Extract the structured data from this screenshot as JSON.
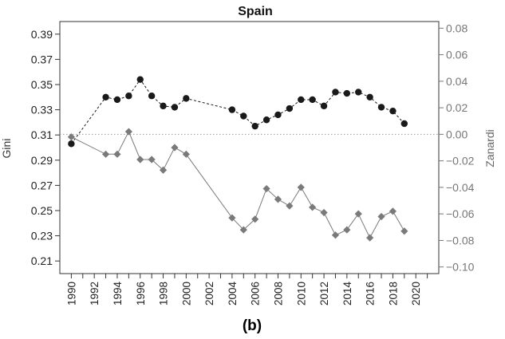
{
  "chart_data": {
    "type": "line",
    "title": "Spain",
    "panel_label": "(b)",
    "left_axis": {
      "label": "Gini",
      "ylim": [
        0.2,
        0.4
      ],
      "ticks": [
        0.21,
        0.23,
        0.25,
        0.27,
        0.29,
        0.31,
        0.33,
        0.35,
        0.37,
        0.39
      ]
    },
    "right_axis": {
      "label": "Zanardi",
      "ylim": [
        -0.105,
        0.085
      ],
      "ticks": [
        -0.1,
        -0.08,
        -0.06,
        -0.04,
        -0.02,
        0.0,
        0.02,
        0.04,
        0.06,
        0.08
      ],
      "tick_labels": [
        "−0.10",
        "−0.08",
        "−0.06",
        "−0.04",
        "−0.02",
        "0.00",
        "0.02",
        "0.04",
        "0.06",
        "0.08"
      ]
    },
    "xlim": [
      1989,
      2022
    ],
    "x_ticks": [
      1990,
      1991,
      1992,
      1993,
      1994,
      1995,
      1996,
      1997,
      1998,
      1999,
      2000,
      2001,
      2002,
      2003,
      2004,
      2005,
      2006,
      2007,
      2008,
      2009,
      2010,
      2011,
      2012,
      2013,
      2014,
      2015,
      2016,
      2017,
      2018,
      2019,
      2020,
      2021
    ],
    "x_tick_labels": [
      1990,
      1992,
      1994,
      1996,
      1998,
      2000,
      2002,
      2004,
      2006,
      2008,
      2010,
      2012,
      2014,
      2016,
      2018,
      2020
    ],
    "grid": false,
    "reference_line": {
      "axis": "right",
      "value": 0.0,
      "style": "dotted"
    },
    "series": [
      {
        "axis": "left",
        "marker": "circle",
        "line": "dashed",
        "color": "#1a1a1a",
        "x": [
          1990,
          1993,
          1994,
          1995,
          1996,
          1997,
          1998,
          1999,
          2000,
          2004,
          2005,
          2006,
          2007,
          2008,
          2009,
          2010,
          2011,
          2012,
          2013,
          2014,
          2015,
          2016,
          2017,
          2018,
          2019
        ],
        "y": [
          0.303,
          0.34,
          0.338,
          0.341,
          0.354,
          0.341,
          0.333,
          0.332,
          0.339,
          0.33,
          0.325,
          0.317,
          0.322,
          0.326,
          0.331,
          0.338,
          0.338,
          0.333,
          0.344,
          0.343,
          0.344,
          0.34,
          0.332,
          0.329,
          0.319
        ]
      },
      {
        "axis": "right",
        "marker": "diamond",
        "line": "solid",
        "color": "#7a7a7a",
        "x": [
          1990,
          1993,
          1994,
          1995,
          1996,
          1997,
          1998,
          1999,
          2000,
          2004,
          2005,
          2006,
          2007,
          2008,
          2009,
          2010,
          2011,
          2012,
          2013,
          2014,
          2015,
          2016,
          2017,
          2018,
          2019
        ],
        "y": [
          -0.002,
          -0.015,
          -0.015,
          0.002,
          -0.019,
          -0.019,
          -0.027,
          -0.01,
          -0.015,
          -0.063,
          -0.072,
          -0.064,
          -0.041,
          -0.049,
          -0.054,
          -0.04,
          -0.055,
          -0.059,
          -0.076,
          -0.072,
          -0.06,
          -0.078,
          -0.062,
          -0.058,
          -0.073
        ]
      }
    ]
  }
}
